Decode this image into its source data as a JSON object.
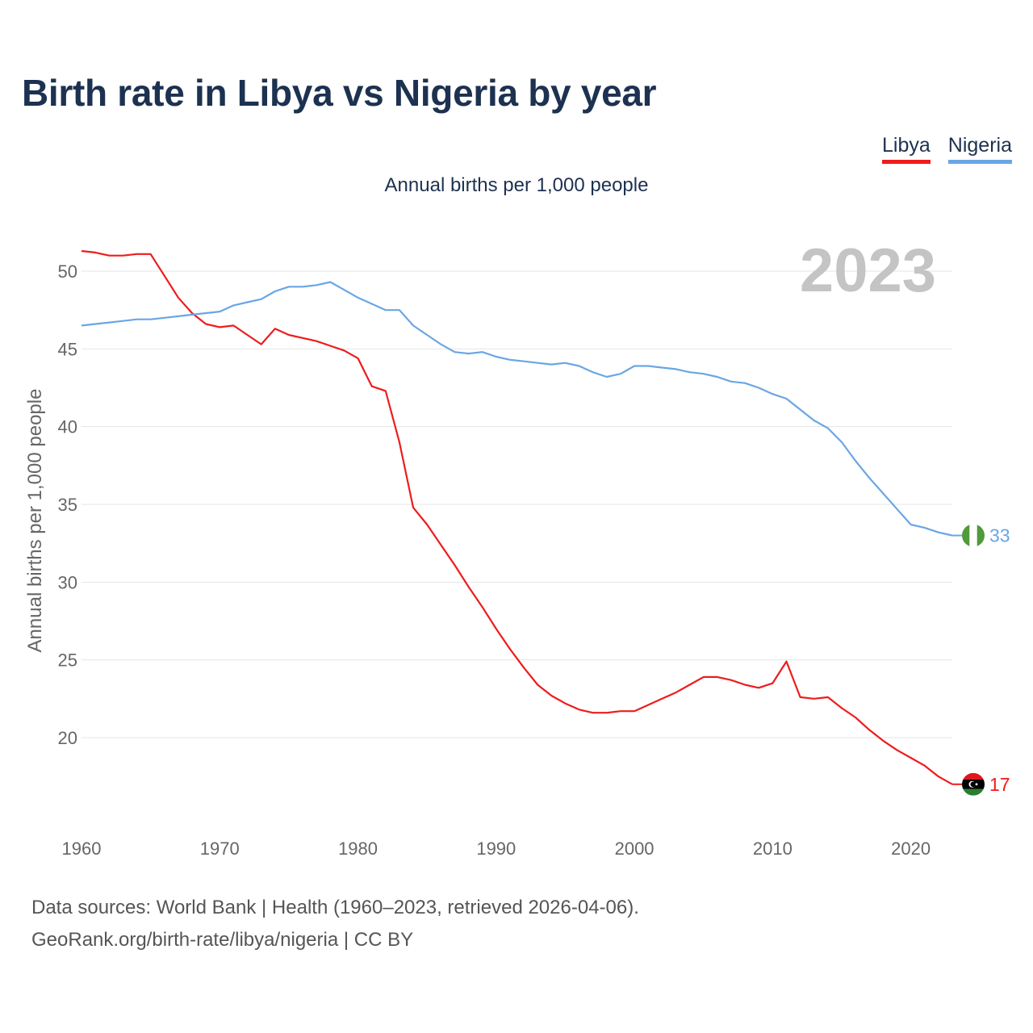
{
  "title": "Birth rate in Libya vs Nigeria by year",
  "subtitle": "Annual births per 1,000 people",
  "legend": [
    {
      "label": "Libya",
      "color": "#ee1c1c"
    },
    {
      "label": "Nigeria",
      "color": "#6aa6e4"
    }
  ],
  "footer": {
    "line1": "Data sources: World Bank | Health (1960–2023, retrieved 2026-04-06).",
    "line2": "GeoRank.org/birth-rate/libya/nigeria | CC BY"
  },
  "chart_data": {
    "type": "line",
    "title": "Birth rate in Libya vs Nigeria by year",
    "subtitle": "Annual births per 1,000 people",
    "xlabel": "",
    "ylabel": "Annual births per 1,000 people",
    "year_label": "2023",
    "xlim": [
      1960,
      2023
    ],
    "ylim": [
      15,
      53
    ],
    "x_ticks": [
      1960,
      1970,
      1980,
      1990,
      2000,
      2010,
      2020
    ],
    "y_ticks": [
      20,
      25,
      30,
      35,
      40,
      45,
      50
    ],
    "grid": true,
    "x": [
      1960,
      1961,
      1962,
      1963,
      1964,
      1965,
      1966,
      1967,
      1968,
      1969,
      1970,
      1971,
      1972,
      1973,
      1974,
      1975,
      1976,
      1977,
      1978,
      1979,
      1980,
      1981,
      1982,
      1983,
      1984,
      1985,
      1986,
      1987,
      1988,
      1989,
      1990,
      1991,
      1992,
      1993,
      1994,
      1995,
      1996,
      1997,
      1998,
      1999,
      2000,
      2001,
      2002,
      2003,
      2004,
      2005,
      2006,
      2007,
      2008,
      2009,
      2010,
      2011,
      2012,
      2013,
      2014,
      2015,
      2016,
      2017,
      2018,
      2019,
      2020,
      2021,
      2022,
      2023
    ],
    "series": [
      {
        "name": "Libya",
        "color": "#ee1c1c",
        "end_label": "17",
        "values": [
          51.3,
          51.2,
          51.0,
          51.0,
          51.1,
          51.1,
          49.7,
          48.3,
          47.3,
          46.6,
          46.4,
          46.5,
          45.9,
          45.3,
          46.3,
          45.9,
          45.7,
          45.5,
          45.2,
          44.9,
          44.4,
          42.6,
          42.3,
          39.0,
          34.8,
          33.7,
          32.4,
          31.1,
          29.7,
          28.4,
          27.0,
          25.7,
          24.5,
          23.4,
          22.7,
          22.2,
          21.8,
          21.6,
          21.6,
          21.7,
          21.7,
          22.1,
          22.5,
          22.9,
          23.4,
          23.9,
          23.9,
          23.7,
          23.4,
          23.2,
          23.5,
          24.9,
          22.6,
          22.5,
          22.6,
          21.9,
          21.3,
          20.5,
          19.8,
          19.2,
          18.7,
          18.2,
          17.5,
          17.0
        ]
      },
      {
        "name": "Nigeria",
        "color": "#6aa6e4",
        "end_label": "33",
        "values": [
          46.5,
          46.6,
          46.7,
          46.8,
          46.9,
          46.9,
          47.0,
          47.1,
          47.2,
          47.3,
          47.4,
          47.8,
          48.0,
          48.2,
          48.7,
          49.0,
          49.0,
          49.1,
          49.3,
          48.8,
          48.3,
          47.9,
          47.5,
          47.5,
          46.5,
          45.9,
          45.3,
          44.8,
          44.7,
          44.8,
          44.5,
          44.3,
          44.2,
          44.1,
          44.0,
          44.1,
          43.9,
          43.5,
          43.2,
          43.4,
          43.9,
          43.9,
          43.8,
          43.7,
          43.5,
          43.4,
          43.2,
          42.9,
          42.8,
          42.5,
          42.1,
          41.8,
          41.1,
          40.4,
          39.9,
          39.0,
          37.8,
          36.7,
          35.7,
          34.7,
          33.7,
          33.5,
          33.2,
          33.0
        ]
      }
    ]
  }
}
